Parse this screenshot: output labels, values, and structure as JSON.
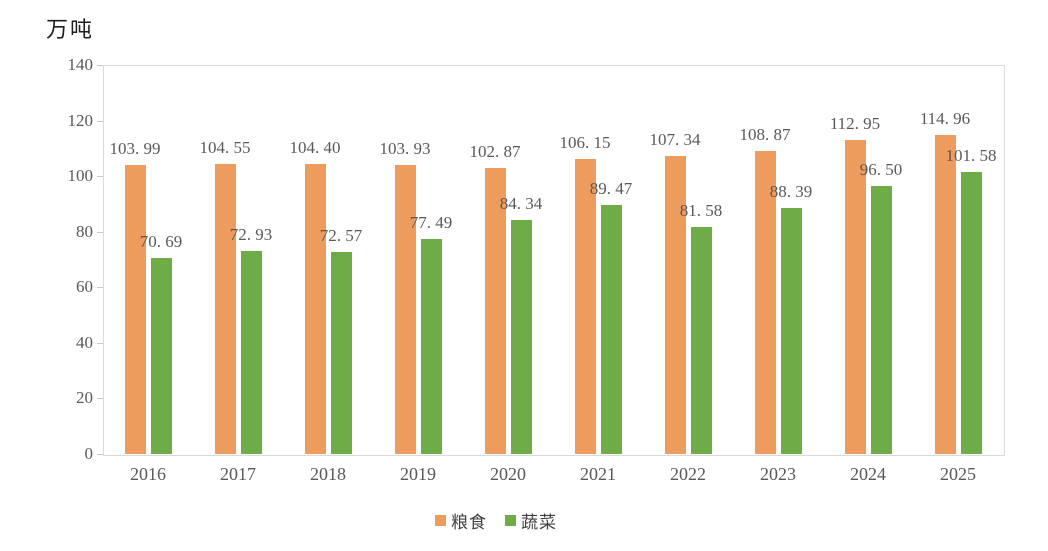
{
  "unit_label": "万吨",
  "legend": {
    "items": [
      {
        "label": "粮食",
        "color": "#EE9C5D"
      },
      {
        "label": "蔬菜",
        "color": "#6EAC47"
      }
    ],
    "position": "bottom"
  },
  "chart_data": {
    "type": "bar",
    "title": "",
    "ylabel": "万吨",
    "xlabel": "",
    "categories": [
      "2016",
      "2017",
      "2018",
      "2019",
      "2020",
      "2021",
      "2022",
      "2023",
      "2024",
      "2025"
    ],
    "series": [
      {
        "name": "粮食",
        "color": "#EE9C5D",
        "values": [
          103.99,
          104.55,
          104.4,
          103.93,
          102.87,
          106.15,
          107.34,
          108.87,
          112.95,
          114.96
        ],
        "labels": [
          "103. 99",
          "104. 55",
          "104. 40",
          "103. 93",
          "102. 87",
          "106. 15",
          "107. 34",
          "108. 87",
          "112. 95",
          "114. 96"
        ]
      },
      {
        "name": "蔬菜",
        "color": "#6EAC47",
        "values": [
          70.69,
          72.93,
          72.57,
          77.49,
          84.34,
          89.47,
          81.58,
          88.39,
          96.5,
          101.58
        ],
        "labels": [
          "70. 69",
          "72. 93",
          "72. 57",
          "77. 49",
          "84. 34",
          "89. 47",
          "81. 58",
          "88. 39",
          "96. 50",
          "101. 58"
        ]
      }
    ],
    "ylim": [
      0,
      140
    ],
    "ytick_step": 20,
    "yticks": [
      0,
      20,
      40,
      60,
      80,
      100,
      120,
      140
    ],
    "grid": false,
    "legend_position": "bottom",
    "data_labels": true
  }
}
